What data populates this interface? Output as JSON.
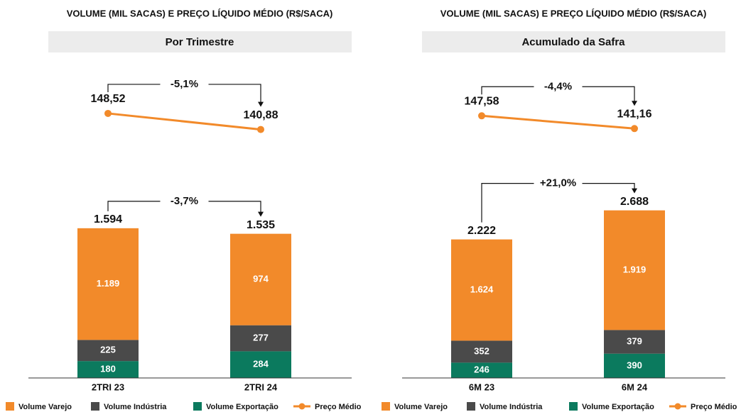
{
  "chart_data": [
    {
      "type": "bar",
      "stacked": true,
      "title": "VOLUME (MIL SACAS) E PREÇO LÍQUIDO MÉDIO (R$/SACA)",
      "subtitle": "Por Trimestre",
      "categories": [
        "2TRI 23",
        "2TRI 24"
      ],
      "series": [
        {
          "name": "Volume Varejo",
          "color": "#f28a2a",
          "values": [
            1189,
            974
          ],
          "value_labels": [
            "1.189",
            "974"
          ]
        },
        {
          "name": "Volume Indústria",
          "color": "#4a4a4a",
          "values": [
            225,
            277
          ],
          "value_labels": [
            "225",
            "277"
          ]
        },
        {
          "name": "Volume Exportação",
          "color": "#0b7a5e",
          "values": [
            180,
            284
          ],
          "value_labels": [
            "180",
            "284"
          ]
        }
      ],
      "totals": {
        "values": [
          1594,
          1535
        ],
        "value_labels": [
          "1.594",
          "1.535"
        ]
      },
      "volume_change": "-3,7%",
      "ylim": [
        0,
        1925
      ],
      "price": {
        "name": "Preço Médio",
        "color": "#f28a2a",
        "axis": "y2",
        "values": [
          148.52,
          140.88
        ],
        "value_labels": [
          "148,52",
          "140,88"
        ]
      },
      "price_change": "-5,1%",
      "y2lim": [
        135,
        162
      ]
    },
    {
      "type": "bar",
      "stacked": true,
      "title": "VOLUME (MIL SACAS) E PREÇO LÍQUIDO MÉDIO (R$/SACA)",
      "subtitle": "Acumulado da Safra",
      "categories": [
        "6M 23",
        "6M 24"
      ],
      "series": [
        {
          "name": "Volume Varejo",
          "color": "#f28a2a",
          "values": [
            1624,
            1919
          ],
          "value_labels": [
            "1.624",
            "1.919"
          ]
        },
        {
          "name": "Volume Indústria",
          "color": "#4a4a4a",
          "values": [
            352,
            379
          ],
          "value_labels": [
            "352",
            "379"
          ]
        },
        {
          "name": "Volume Exportação",
          "color": "#0b7a5e",
          "values": [
            246,
            390
          ],
          "value_labels": [
            "246",
            "390"
          ]
        }
      ],
      "totals": {
        "values": [
          2222,
          2688
        ],
        "value_labels": [
          "2.222",
          "2.688"
        ]
      },
      "volume_change": "+21,0%",
      "ylim": [
        0,
        2900
      ],
      "price": {
        "name": "Preço Médio",
        "color": "#f28a2a",
        "axis": "y2",
        "values": [
          147.58,
          141.16
        ],
        "value_labels": [
          "147,58",
          "141,16"
        ]
      },
      "price_change": "-4,4%",
      "y2lim": [
        134.5,
        163
      ]
    }
  ]
}
